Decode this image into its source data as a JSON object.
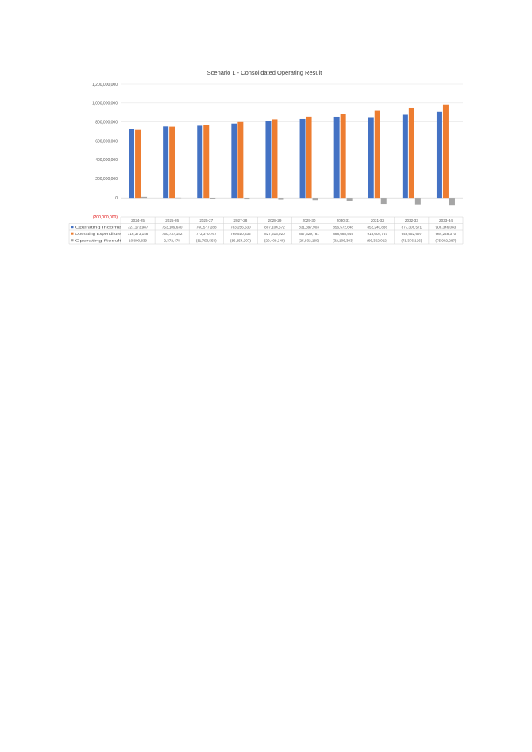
{
  "chart_data": {
    "type": "bar",
    "title": "Scenario 1 - Consolidated Operating Result",
    "categories": [
      "2024-25",
      "2025-26",
      "2026-27",
      "2027-28",
      "2028-29",
      "2029-30",
      "2030-31",
      "2031-32",
      "2032-33",
      "2033-34"
    ],
    "y_ticks": [
      "(200,000,000)",
      "0",
      "200,000,000",
      "400,000,000",
      "600,000,000",
      "800,000,000",
      "1,000,000,000",
      "1,200,000,000"
    ],
    "ylim": [
      -200000000,
      1200000000
    ],
    "grid": true,
    "legend": "data-table",
    "series": [
      {
        "name": "Operating Income",
        "color": "#4472c4",
        "values": [
          727173987,
          753109630,
          760577288,
          783256630,
          807104672,
          831397903,
          856572648,
          852240836,
          877306571,
          908346083
        ],
        "labels": [
          "727,173,987",
          "753,109,630",
          "760,577,288",
          "783,256,630",
          "807,104,672",
          "831,397,903",
          "856,572,648",
          "852,240,836",
          "877,306,571",
          "908,346,083"
        ]
      },
      {
        "name": "Operating Expenditure",
        "color": "#ed7d31",
        "values": [
          716373148,
          750737152,
          772370767,
          799510836,
          827513920,
          857329781,
          888688949,
          918604757,
          948652697,
          984248370
        ],
        "labels": [
          "716,373,148",
          "750,737,152",
          "772,370,767",
          "799,510,836",
          "827,513,920",
          "857,329,781",
          "888,688,949",
          "918,604,757",
          "948,652,697",
          "984,248,370"
        ]
      },
      {
        "name": "Operating Result",
        "color": "#a5a5a5",
        "values": [
          10800839,
          2372478,
          -11793558,
          -16254207,
          -20409248,
          -25932180,
          -32106303,
          -66362012,
          -71376126,
          -75902287
        ],
        "labels": [
          "10,800,839",
          "2,372,478",
          "(11,793,558)",
          "(16,254,207)",
          "(20,409,248)",
          "(25,932,180)",
          "(32,106,303)",
          "(66,362,012)",
          "(71,376,126)",
          "(75,902,287)"
        ]
      }
    ]
  }
}
